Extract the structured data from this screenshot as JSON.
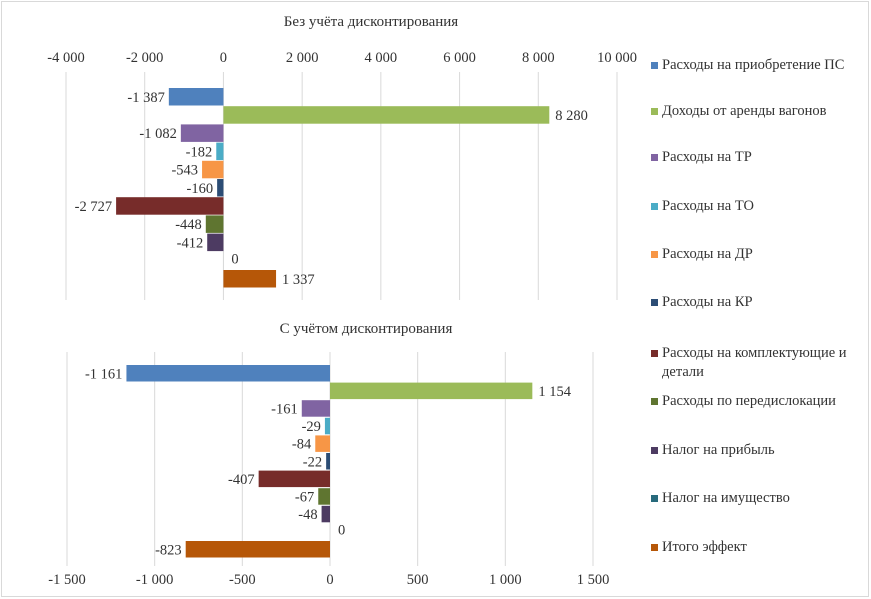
{
  "chart_data": [
    {
      "type": "bar",
      "orientation": "horizontal",
      "title": "Без учёта дисконтирования",
      "xlim": [
        -4000,
        10000
      ],
      "x_ticks": [
        -4000,
        -2000,
        0,
        2000,
        4000,
        6000,
        8000,
        10000
      ],
      "x_tick_labels": [
        "-4 000",
        "-2 000",
        "0",
        "2 000",
        "4 000",
        "6 000",
        "8 000",
        "10 000"
      ],
      "axis_position": "top",
      "grid": true,
      "categories": [
        "Расходы на приобретение ПС",
        "Доходы от аренды вагонов",
        "Расходы на ТР",
        "Расходы на ТО",
        "Расходы на ДР",
        "Расходы на КР",
        "Расходы на комплектующие и детали",
        "Расходы по передислокации",
        "Налог на прибыль",
        "Налог на имущество",
        "Итого эффект"
      ],
      "values": [
        -1387,
        8280,
        -1082,
        -182,
        -543,
        -160,
        -2727,
        -448,
        -412,
        0,
        1337
      ],
      "data_labels": [
        "-1 387",
        "8 280",
        "-1 082",
        "-182",
        "-543",
        "-160",
        "-2 727",
        "-448",
        "-412",
        "0",
        "1 337"
      ]
    },
    {
      "type": "bar",
      "orientation": "horizontal",
      "title": "С учётом дисконтирования",
      "xlim": [
        -1500,
        1500
      ],
      "x_ticks": [
        -1500,
        -1000,
        -500,
        0,
        500,
        1000,
        1500
      ],
      "x_tick_labels": [
        "-1 500",
        "-1 000",
        "-500",
        "0",
        "500",
        "1 000",
        "1 500"
      ],
      "axis_position": "bottom",
      "grid": true,
      "categories": [
        "Расходы на приобретение ПС",
        "Доходы от аренды вагонов",
        "Расходы на ТР",
        "Расходы на ТО",
        "Расходы на ДР",
        "Расходы на КР",
        "Расходы на комплектующие и детали",
        "Расходы по передислокации",
        "Налог на прибыль",
        "Налог на имущество",
        "Итого эффект"
      ],
      "values": [
        -1161,
        1154,
        -161,
        -29,
        -84,
        -22,
        -407,
        -67,
        -48,
        0,
        -823
      ],
      "data_labels": [
        "-1 161",
        "1 154",
        "-161",
        "-29",
        "-84",
        "-22",
        "-407",
        "-67",
        "-48",
        "0",
        "-823"
      ]
    }
  ],
  "legend": {
    "placement": "right",
    "items": [
      {
        "label": "Расходы на приобретение ПС",
        "color": "#4f81bd"
      },
      {
        "label": "Доходы от аренды вагонов",
        "color": "#9bbb59"
      },
      {
        "label": "Расходы на ТР",
        "color": "#8064a2"
      },
      {
        "label": "Расходы на ТО",
        "color": "#4bacc6"
      },
      {
        "label": "Расходы на ДР",
        "color": "#f79646"
      },
      {
        "label": "Расходы на КР",
        "color": "#2c4d75"
      },
      {
        "label": "Расходы на комплектующие и детали",
        "color": "#772c2a"
      },
      {
        "label": "Расходы по передислокации",
        "color": "#5f7530"
      },
      {
        "label": "Налог на прибыль",
        "color": "#4d3b62"
      },
      {
        "label": "Налог на имущество",
        "color": "#276a7c"
      },
      {
        "label": "Итого эффект",
        "color": "#b65708"
      }
    ]
  }
}
